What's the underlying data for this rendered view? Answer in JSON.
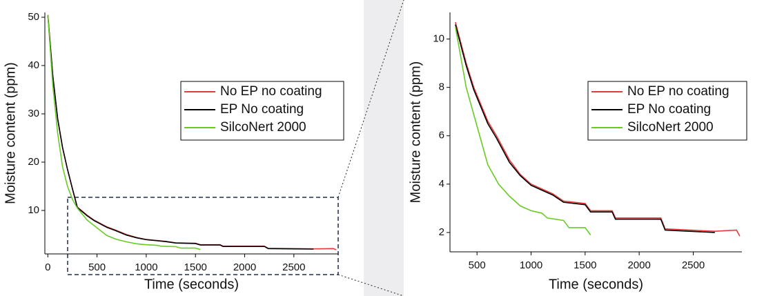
{
  "chart_data": [
    {
      "type": "line",
      "x_label": "Time (seconds)",
      "y_label": "Moisture content (ppm)",
      "xlim": [
        -30,
        2950
      ],
      "ylim": [
        1,
        51
      ],
      "xticks": [
        0,
        500,
        1000,
        1500,
        2000,
        2500
      ],
      "yticks": [
        10,
        20,
        30,
        40,
        50
      ],
      "series": [
        {
          "name": "No EP no coating",
          "color": "#e8393a",
          "x": [
            0,
            50,
            100,
            150,
            200,
            250,
            300,
            400,
            470,
            600,
            680,
            800,
            900,
            1000,
            1100,
            1200,
            1300,
            1500,
            1550,
            1750,
            1780,
            2200,
            2240,
            2700,
            2900,
            2930
          ],
          "values": [
            50.5,
            38,
            29,
            23,
            18.5,
            14.5,
            10.7,
            9.0,
            8.0,
            6.6,
            6.0,
            5.0,
            4.4,
            4.0,
            3.8,
            3.6,
            3.3,
            3.2,
            2.9,
            2.9,
            2.6,
            2.6,
            2.15,
            2.05,
            2.1,
            1.85
          ]
        },
        {
          "name": "EP No coating",
          "color": "#000000",
          "x": [
            0,
            50,
            100,
            150,
            200,
            250,
            300,
            400,
            470,
            600,
            680,
            800,
            900,
            1000,
            1100,
            1200,
            1300,
            1500,
            1550,
            1750,
            1780,
            2200,
            2240,
            2700
          ],
          "values": [
            50.5,
            38,
            29,
            23,
            18.5,
            14.5,
            10.6,
            8.9,
            7.9,
            6.5,
            5.9,
            4.9,
            4.35,
            3.95,
            3.75,
            3.55,
            3.25,
            3.15,
            2.85,
            2.85,
            2.55,
            2.55,
            2.1,
            2.0
          ]
        },
        {
          "name": "SilcoNert 2000",
          "color": "#66cc22",
          "x": [
            0,
            50,
            100,
            150,
            200,
            250,
            300,
            400,
            500,
            600,
            700,
            800,
            900,
            1000,
            1100,
            1150,
            1300,
            1350,
            1500,
            1550
          ],
          "values": [
            50.5,
            36,
            26,
            19,
            15,
            12.3,
            10.5,
            8.0,
            6.4,
            4.8,
            4.0,
            3.5,
            3.1,
            2.9,
            2.8,
            2.6,
            2.5,
            2.2,
            2.2,
            1.9
          ]
        }
      ]
    },
    {
      "type": "line",
      "x_label": "Time (seconds)",
      "y_label": "Moisture content (ppm)",
      "xlim": [
        250,
        2950
      ],
      "ylim": [
        1.2,
        11.1
      ],
      "xticks": [
        500,
        1000,
        1500,
        2000,
        2500
      ],
      "yticks": [
        2,
        4,
        6,
        8,
        10
      ],
      "series": [
        {
          "name": "No EP no coating",
          "color": "#e8393a",
          "x": [
            300,
            400,
            470,
            600,
            680,
            800,
            900,
            1000,
            1100,
            1200,
            1300,
            1500,
            1550,
            1750,
            1780,
            2200,
            2240,
            2700,
            2900,
            2930
          ],
          "values": [
            10.7,
            9.0,
            8.0,
            6.6,
            6.0,
            5.0,
            4.4,
            4.0,
            3.8,
            3.6,
            3.3,
            3.2,
            2.9,
            2.9,
            2.6,
            2.6,
            2.15,
            2.05,
            2.1,
            1.85
          ]
        },
        {
          "name": "EP No coating",
          "color": "#000000",
          "x": [
            300,
            400,
            470,
            600,
            680,
            800,
            900,
            1000,
            1100,
            1200,
            1300,
            1500,
            1550,
            1750,
            1780,
            2200,
            2240,
            2700
          ],
          "values": [
            10.6,
            8.9,
            7.9,
            6.5,
            5.9,
            4.9,
            4.35,
            3.95,
            3.75,
            3.55,
            3.25,
            3.15,
            2.85,
            2.85,
            2.55,
            2.55,
            2.1,
            2.0
          ]
        },
        {
          "name": "SilcoNert 2000",
          "color": "#66cc22",
          "x": [
            300,
            400,
            500,
            600,
            700,
            800,
            900,
            1000,
            1100,
            1150,
            1300,
            1350,
            1500,
            1550
          ],
          "values": [
            10.5,
            8.0,
            6.4,
            4.8,
            4.0,
            3.5,
            3.1,
            2.9,
            2.8,
            2.6,
            2.5,
            2.2,
            2.2,
            1.9
          ]
        }
      ]
    }
  ]
}
